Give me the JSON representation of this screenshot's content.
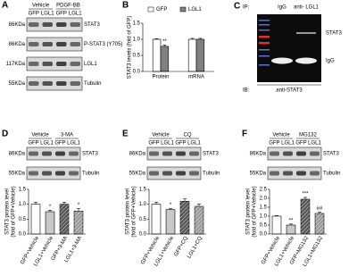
{
  "panels": {
    "A": {
      "label": "A",
      "groups": [
        "Vehicle",
        "PDGF-BB"
      ],
      "lanes": [
        "GFP",
        "LGL1",
        "GFP",
        "LGL1"
      ],
      "rows": [
        {
          "size": "86KDa",
          "name": "STAT3"
        },
        {
          "size": "86KDa",
          "name": "P-STAT3 (Y705)"
        },
        {
          "size": "117KDa",
          "name": "LGL1"
        },
        {
          "size": "55KDa",
          "name": "Tubulin"
        }
      ]
    },
    "C": {
      "label": "C",
      "ip_prefix": "IP:",
      "ip_lanes": [
        "IgG",
        "anti- LGL1"
      ],
      "bands": [
        "STAT3",
        "IgG"
      ],
      "ib_prefix": "IB:",
      "ib": "anti-STAT3"
    },
    "D": {
      "label": "D",
      "groups": [
        "Vehicle",
        "3-MA"
      ],
      "lanes": [
        "GFP",
        "LGL1",
        "GFP",
        "LGL1"
      ],
      "rows": [
        {
          "size": "86KDa",
          "name": "STAT3"
        },
        {
          "size": "55KDa",
          "name": "Tubulin"
        }
      ]
    },
    "E": {
      "label": "E",
      "groups": [
        "Vehicle",
        "CQ"
      ],
      "lanes": [
        "GFP",
        "LGL1",
        "GFP",
        "LGL1"
      ],
      "rows": [
        {
          "size": "86KDa",
          "name": "STAT3"
        },
        {
          "size": "55KDa",
          "name": "Tubulin"
        }
      ]
    },
    "F": {
      "label": "F",
      "groups": [
        "Vehicle",
        "MG132"
      ],
      "lanes": [
        "GFP",
        "LGL1",
        "GFP",
        "LGL1"
      ],
      "rows": [
        {
          "size": "86KDa",
          "name": "STAT3"
        },
        {
          "size": "55KDa",
          "name": "Tubulin"
        }
      ]
    }
  },
  "chart_data": [
    {
      "type": "bar",
      "label": "B",
      "y_label": [
        "STAT3 levels (fold of GFP)"
      ],
      "categories": [
        "Protein",
        "mRNA"
      ],
      "series": [
        {
          "name": "GFP",
          "color": "#ffffff",
          "values": [
            1.0,
            1.0
          ],
          "errors": [
            0.02,
            0.03
          ],
          "annotations": [
            null,
            null
          ]
        },
        {
          "name": "LGL1",
          "color": "#808080",
          "values": [
            0.78,
            1.0
          ],
          "errors": [
            0.04,
            0.03
          ],
          "annotations": [
            "**",
            null
          ]
        }
      ],
      "ylim": [
        0,
        1.5
      ],
      "yticks": [
        {
          "value": 0,
          "label": "0.0"
        },
        {
          "value": 0.5,
          "label": "0.5"
        },
        {
          "value": 1,
          "label": "1.0"
        },
        {
          "value": 1.5,
          "label": "1.5"
        }
      ]
    },
    {
      "type": "bar",
      "y_label": [
        "STAT3 protein level",
        "(fold of GFP+Vehicle)"
      ],
      "categories": [
        "GFP+Vehicle",
        "LGL1+Vehicle",
        "GFP+3-MA",
        "LGL1+3-MA"
      ],
      "values": [
        1.0,
        0.75,
        1.0,
        0.77
      ],
      "errors": [
        0.07,
        0.05,
        0.07,
        0.08
      ],
      "annotations": [
        null,
        "*",
        null,
        "*"
      ],
      "colors": [
        "#ffffff",
        "#c8c8c8",
        "#555555",
        "#999999"
      ],
      "hatched": [
        false,
        false,
        true,
        true
      ],
      "ylim": [
        0,
        1.5
      ],
      "yticks": [
        {
          "value": 0,
          "label": "0.0"
        },
        {
          "value": 0.5,
          "label": "0.5"
        },
        {
          "value": 1,
          "label": "1.0"
        },
        {
          "value": 1.5,
          "label": "1.5"
        }
      ]
    },
    {
      "type": "bar",
      "y_label": [
        "STAT3 protein level",
        "(fold of GFP+Vehicle)"
      ],
      "categories": [
        "GFP+Vehicle",
        "LGL1+Vehicle",
        "GFP+CQ",
        "LGL1+CQ"
      ],
      "values": [
        1.0,
        0.82,
        1.1,
        0.93
      ],
      "errors": [
        0.07,
        0.03,
        0.08,
        0.08
      ],
      "annotations": [
        null,
        "*",
        null,
        null
      ],
      "colors": [
        "#ffffff",
        "#c8c8c8",
        "#555555",
        "#999999"
      ],
      "hatched": [
        false,
        false,
        true,
        true
      ],
      "ylim": [
        0,
        1.5
      ],
      "yticks": [
        {
          "value": 0,
          "label": "0.0"
        },
        {
          "value": 0.5,
          "label": "0.5"
        },
        {
          "value": 1,
          "label": "1.0"
        },
        {
          "value": 1.5,
          "label": "1.5"
        }
      ]
    },
    {
      "type": "bar",
      "y_label": [
        "STAT3 protein level",
        "(fold of GFP+Vehicle)"
      ],
      "categories": [
        "GFP+Vehicle",
        "LGL1+Vehicle",
        "GFP+MG132",
        "LGL1+MG132"
      ],
      "values": [
        1.0,
        0.5,
        1.95,
        1.15
      ],
      "errors": [
        0.03,
        0.06,
        0.1,
        0.07
      ],
      "annotations": [
        null,
        "**",
        "***",
        "##"
      ],
      "colors": [
        "#ffffff",
        "#c8c8c8",
        "#555555",
        "#999999"
      ],
      "hatched": [
        false,
        false,
        true,
        true
      ],
      "ylim": [
        0,
        2.5
      ],
      "yticks": [
        {
          "value": 0,
          "label": "0.0"
        },
        {
          "value": 0.5,
          "label": "0.5"
        },
        {
          "value": 1,
          "label": "1.0"
        },
        {
          "value": 1.5,
          "label": "1.5"
        },
        {
          "value": 2,
          "label": "2.0"
        },
        {
          "value": 2.5,
          "label": "2.5"
        }
      ]
    }
  ]
}
